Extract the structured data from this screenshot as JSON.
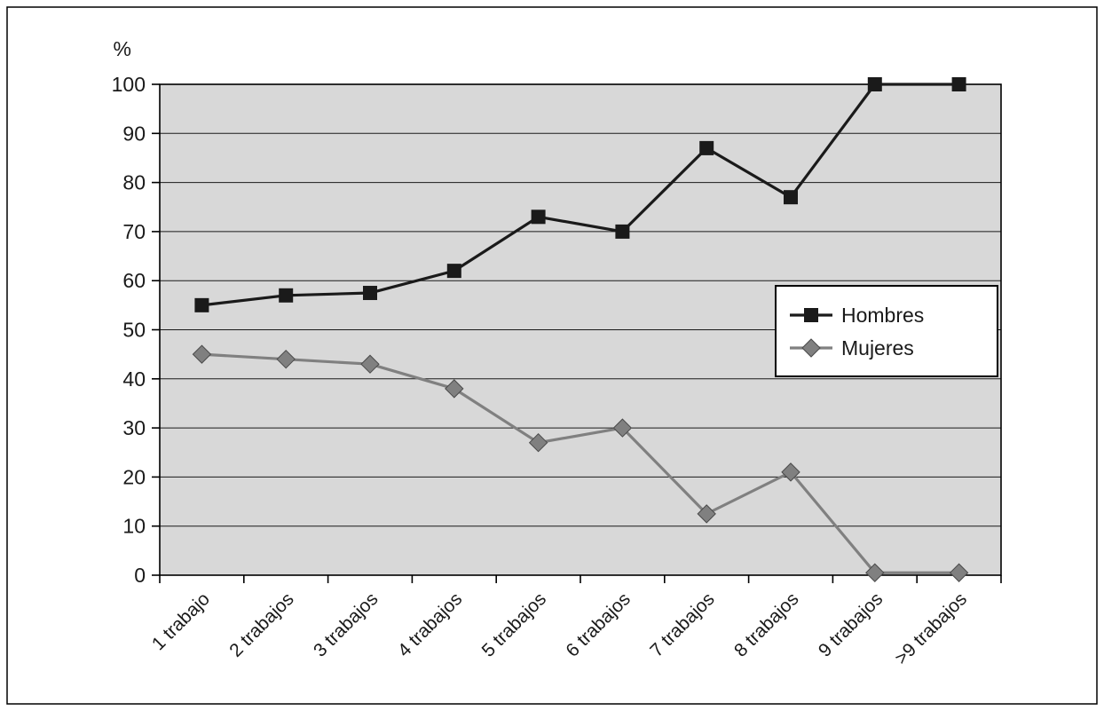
{
  "chart_data": {
    "type": "line",
    "title": "",
    "xlabel": "",
    "ylabel": "%",
    "ylim": [
      0,
      100
    ],
    "ytick_step": 10,
    "grid": "horizontal",
    "plot_background": "#d8d8d8",
    "gridline_color": "#1a1a1a",
    "frame_color": "#000000",
    "legend_position": "middle-right",
    "categories": [
      "1 trabajo",
      "2 trabajos",
      "3 trabajos",
      "4 trabajos",
      "5 trabajos",
      "6 trabajos",
      "7 trabajos",
      "8 trabajos",
      "9 trabajos",
      ">9 trabajos"
    ],
    "series": [
      {
        "name": "Hombres",
        "marker": "square",
        "color": "#1a1a1a",
        "values": [
          55,
          57,
          57.5,
          62,
          73,
          70,
          87,
          77,
          100,
          100
        ]
      },
      {
        "name": "Mujeres",
        "marker": "diamond",
        "color": "#808080",
        "values": [
          45,
          44,
          43,
          38,
          27,
          30,
          12.5,
          21,
          0.5,
          0.5
        ]
      }
    ]
  }
}
